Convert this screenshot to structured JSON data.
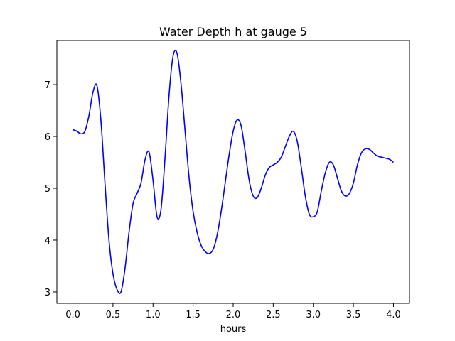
{
  "chart_data": {
    "type": "line",
    "title": "Water Depth h at gauge 5",
    "xlabel": "hours",
    "ylabel": "",
    "xlim": [
      -0.2,
      4.2
    ],
    "ylim": [
      2.78,
      7.85
    ],
    "xticks": [
      0.0,
      0.5,
      1.0,
      1.5,
      2.0,
      2.5,
      3.0,
      3.5,
      4.0
    ],
    "xtick_labels": [
      "0.0",
      "0.5",
      "1.0",
      "1.5",
      "2.0",
      "2.5",
      "3.0",
      "3.5",
      "4.0"
    ],
    "yticks": [
      3,
      4,
      5,
      6,
      7
    ],
    "ytick_labels": [
      "3",
      "4",
      "5",
      "6",
      "7"
    ],
    "grid": false,
    "series": [
      {
        "color": "#0000ff",
        "x": [
          0.0,
          0.05,
          0.1,
          0.15,
          0.2,
          0.25,
          0.3,
          0.35,
          0.4,
          0.45,
          0.5,
          0.55,
          0.6,
          0.65,
          0.7,
          0.75,
          0.8,
          0.85,
          0.9,
          0.95,
          1.0,
          1.05,
          1.1,
          1.15,
          1.2,
          1.25,
          1.3,
          1.35,
          1.4,
          1.45,
          1.5,
          1.55,
          1.6,
          1.65,
          1.7,
          1.75,
          1.8,
          1.85,
          1.9,
          1.95,
          2.0,
          2.05,
          2.1,
          2.15,
          2.2,
          2.25,
          2.3,
          2.35,
          2.4,
          2.45,
          2.5,
          2.55,
          2.6,
          2.65,
          2.7,
          2.75,
          2.8,
          2.85,
          2.9,
          2.95,
          3.0,
          3.05,
          3.1,
          3.15,
          3.2,
          3.25,
          3.3,
          3.35,
          3.4,
          3.45,
          3.5,
          3.55,
          3.6,
          3.65,
          3.7,
          3.75,
          3.8,
          3.85,
          3.9,
          3.95,
          4.0
        ],
        "y": [
          6.13,
          6.1,
          6.05,
          6.1,
          6.4,
          6.85,
          6.98,
          6.3,
          5.1,
          4.0,
          3.35,
          3.05,
          3.0,
          3.45,
          4.15,
          4.7,
          4.9,
          5.1,
          5.55,
          5.7,
          5.15,
          4.45,
          4.6,
          5.6,
          6.8,
          7.55,
          7.6,
          7.0,
          6.1,
          5.2,
          4.55,
          4.15,
          3.9,
          3.78,
          3.74,
          3.82,
          4.1,
          4.55,
          5.1,
          5.65,
          6.1,
          6.32,
          6.2,
          5.7,
          5.15,
          4.85,
          4.82,
          5.0,
          5.25,
          5.4,
          5.45,
          5.5,
          5.6,
          5.8,
          6.0,
          6.1,
          5.9,
          5.4,
          4.85,
          4.5,
          4.45,
          4.55,
          4.95,
          5.3,
          5.5,
          5.45,
          5.2,
          4.95,
          4.85,
          4.9,
          5.1,
          5.45,
          5.68,
          5.76,
          5.75,
          5.68,
          5.62,
          5.6,
          5.58,
          5.56,
          5.5
        ]
      }
    ]
  }
}
